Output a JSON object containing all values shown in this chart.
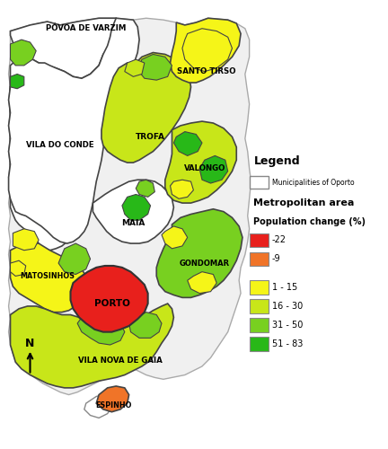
{
  "colors": {
    "decline_high": "#e8201c",
    "decline_low": "#f07428",
    "growth_1_15": "#f5f518",
    "growth_16_30": "#c8e619",
    "growth_31_50": "#78d020",
    "growth_51_83": "#28b818",
    "white": "#ffffff",
    "map_bg": "#f8f8f8",
    "border_dark": "#444444",
    "border_light": "#aaaaaa"
  },
  "legend_items": [
    {
      "label": "Municipalities of Oporto",
      "color": "#ffffff",
      "edge": "#888888"
    },
    {
      "label": "-22",
      "color": "#e8201c"
    },
    {
      "label": "-9",
      "color": "#f07428"
    },
    {
      "label": "1 - 15",
      "color": "#f5f518"
    },
    {
      "label": "16 - 30",
      "color": "#c8e619"
    },
    {
      "label": "31 - 50",
      "color": "#78d020"
    },
    {
      "label": "51 - 83",
      "color": "#28b818"
    }
  ]
}
